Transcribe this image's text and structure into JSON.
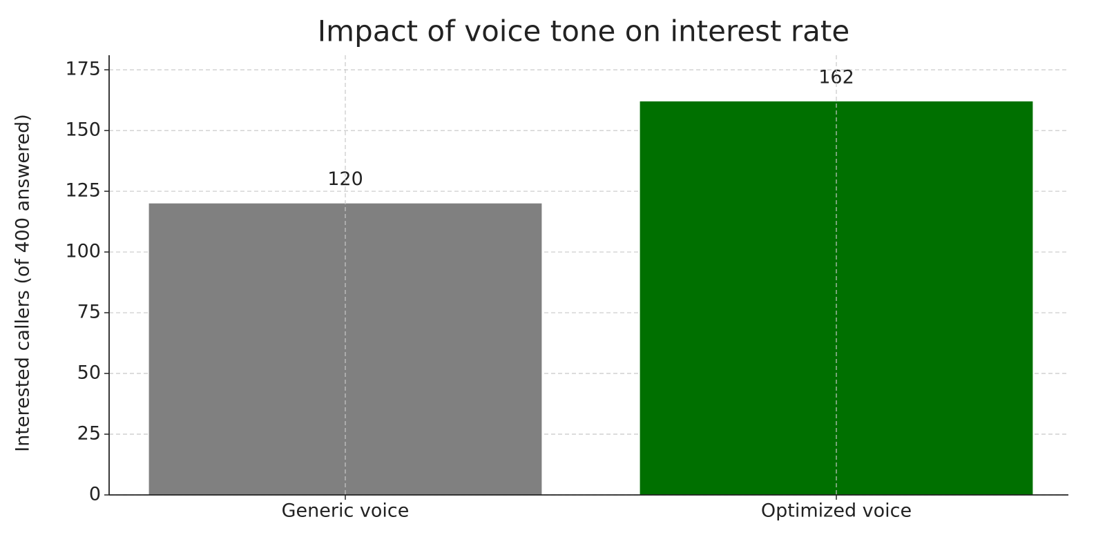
{
  "chart_data": {
    "type": "bar",
    "title": "Impact of voice tone on interest rate",
    "y_label": "Interested callers (of 400 answered)",
    "categories": [
      "Generic voice",
      "Optimized voice"
    ],
    "values": [
      120,
      162
    ],
    "colors": [
      "#808080",
      "#007000"
    ],
    "ylim": [
      0,
      181
    ],
    "yticks": [
      0,
      25,
      50,
      75,
      100,
      125,
      150,
      175
    ],
    "grid": true
  }
}
